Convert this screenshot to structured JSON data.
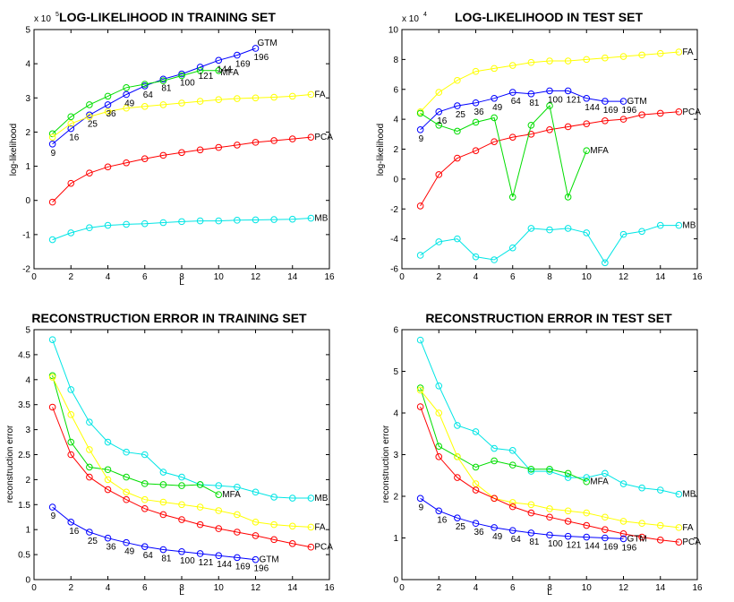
{
  "chart_data": [
    {
      "type": "line",
      "title": "LOG-LIKELIHOOD IN TRAINING SET",
      "xlabel": "L",
      "ylabel": "log-likelihood",
      "exponent_base": "x 10",
      "exponent": "5",
      "xlim": [
        0,
        16
      ],
      "ylim": [
        -2,
        5
      ],
      "xticks": [
        "0",
        "2",
        "4",
        "6",
        "8",
        "10",
        "12",
        "14",
        "16"
      ],
      "yticks": [
        "-2",
        "-1",
        "0",
        "1",
        "2",
        "3",
        "4",
        "5"
      ],
      "series": [
        {
          "name": "GTM",
          "color": "#0000ff",
          "x": [
            1,
            2,
            3,
            4,
            5,
            6,
            7,
            8,
            9,
            10,
            11,
            12
          ],
          "values": [
            1.65,
            2.1,
            2.5,
            2.8,
            3.1,
            3.35,
            3.55,
            3.7,
            3.9,
            4.1,
            4.25,
            4.45
          ]
        },
        {
          "name": "MFA",
          "color": "#00dd00",
          "x": [
            1,
            2,
            3,
            4,
            5,
            6,
            7,
            8,
            9,
            10
          ],
          "values": [
            1.95,
            2.45,
            2.8,
            3.05,
            3.3,
            3.4,
            3.5,
            3.65,
            3.8,
            3.8
          ]
        },
        {
          "name": "FA",
          "color": "#ffff00",
          "x": [
            1,
            2,
            3,
            4,
            5,
            6,
            7,
            8,
            9,
            10,
            11,
            12,
            13,
            14,
            15
          ],
          "values": [
            1.85,
            2.25,
            2.45,
            2.6,
            2.7,
            2.75,
            2.8,
            2.85,
            2.9,
            2.95,
            2.98,
            3.0,
            3.02,
            3.05,
            3.1
          ]
        },
        {
          "name": "PCA",
          "color": "#ff0000",
          "x": [
            1,
            2,
            3,
            4,
            5,
            6,
            7,
            8,
            9,
            10,
            11,
            12,
            13,
            14,
            15
          ],
          "values": [
            -0.05,
            0.5,
            0.8,
            0.98,
            1.1,
            1.22,
            1.32,
            1.4,
            1.48,
            1.55,
            1.62,
            1.7,
            1.75,
            1.8,
            1.85
          ]
        },
        {
          "name": "MB",
          "color": "#00e5e5",
          "x": [
            1,
            2,
            3,
            4,
            5,
            6,
            7,
            8,
            9,
            10,
            11,
            12,
            13,
            14,
            15
          ],
          "values": [
            -1.15,
            -0.95,
            -0.8,
            -0.73,
            -0.7,
            -0.68,
            -0.65,
            -0.62,
            -0.6,
            -0.6,
            -0.58,
            -0.57,
            -0.56,
            -0.55,
            -0.52
          ]
        }
      ],
      "annotations": [
        {
          "text": "9",
          "x": 1,
          "y": 1.65
        },
        {
          "text": "16",
          "x": 2,
          "y": 2.1
        },
        {
          "text": "25",
          "x": 3,
          "y": 2.5
        },
        {
          "text": "36",
          "x": 4,
          "y": 2.8
        },
        {
          "text": "49",
          "x": 5,
          "y": 3.1
        },
        {
          "text": "64",
          "x": 6,
          "y": 3.35
        },
        {
          "text": "81",
          "x": 7,
          "y": 3.55
        },
        {
          "text": "100",
          "x": 8,
          "y": 3.7
        },
        {
          "text": "121",
          "x": 9,
          "y": 3.9
        },
        {
          "text": "144",
          "x": 10,
          "y": 4.1
        },
        {
          "text": "169",
          "x": 11,
          "y": 4.25
        },
        {
          "text": "196",
          "x": 12,
          "y": 4.45
        }
      ]
    },
    {
      "type": "line",
      "title": "LOG-LIKELIHOOD IN TEST SET",
      "xlabel": "",
      "ylabel": "log-likelihood",
      "exponent_base": "x 10",
      "exponent": "4",
      "xlim": [
        0,
        16
      ],
      "ylim": [
        -6,
        10
      ],
      "xticks": [
        "0",
        "2",
        "4",
        "6",
        "8",
        "10",
        "12",
        "14",
        "16"
      ],
      "yticks": [
        "-6",
        "-4",
        "-2",
        "0",
        "2",
        "4",
        "6",
        "8",
        "10"
      ],
      "series": [
        {
          "name": "FA",
          "color": "#ffff00",
          "x": [
            1,
            2,
            3,
            4,
            5,
            6,
            7,
            8,
            9,
            10,
            11,
            12,
            13,
            14,
            15
          ],
          "values": [
            4.5,
            5.8,
            6.6,
            7.2,
            7.4,
            7.6,
            7.8,
            7.9,
            7.9,
            8.0,
            8.1,
            8.2,
            8.3,
            8.4,
            8.5
          ]
        },
        {
          "name": "GTM",
          "color": "#0000ff",
          "x": [
            1,
            2,
            3,
            4,
            5,
            6,
            7,
            8,
            9,
            10,
            11,
            12
          ],
          "values": [
            3.3,
            4.5,
            4.9,
            5.1,
            5.4,
            5.8,
            5.7,
            5.9,
            5.9,
            5.4,
            5.2,
            5.2
          ]
        },
        {
          "name": "PCA",
          "color": "#ff0000",
          "x": [
            1,
            2,
            3,
            4,
            5,
            6,
            7,
            8,
            9,
            10,
            11,
            12,
            13,
            14,
            15
          ],
          "values": [
            -1.8,
            0.3,
            1.4,
            1.9,
            2.5,
            2.8,
            3.0,
            3.3,
            3.5,
            3.7,
            3.9,
            4.0,
            4.3,
            4.4,
            4.5
          ]
        },
        {
          "name": "MFA",
          "color": "#00dd00",
          "x": [
            1,
            2,
            3,
            4,
            5,
            6,
            7,
            8,
            9,
            10
          ],
          "values": [
            4.4,
            3.6,
            3.2,
            3.8,
            4.1,
            -1.2,
            3.6,
            4.9,
            -1.2,
            1.9
          ]
        },
        {
          "name": "MB",
          "color": "#00e5e5",
          "x": [
            1,
            2,
            3,
            4,
            5,
            6,
            7,
            8,
            9,
            10,
            11,
            12,
            13,
            14,
            15
          ],
          "values": [
            -5.1,
            -4.2,
            -4.0,
            -5.2,
            -5.4,
            -4.6,
            -3.3,
            -3.4,
            -3.3,
            -3.6,
            -5.6,
            -3.7,
            -3.5,
            -3.1,
            -3.1
          ]
        }
      ],
      "annotations": [
        {
          "text": "9",
          "x": 1,
          "y": 3.3
        },
        {
          "text": "16",
          "x": 2,
          "y": 4.5
        },
        {
          "text": "25",
          "x": 3,
          "y": 4.9
        },
        {
          "text": "36",
          "x": 4,
          "y": 5.1
        },
        {
          "text": "49",
          "x": 5,
          "y": 5.4
        },
        {
          "text": "64",
          "x": 6,
          "y": 5.8
        },
        {
          "text": "81",
          "x": 7,
          "y": 5.7
        },
        {
          "text": "100",
          "x": 8,
          "y": 5.9
        },
        {
          "text": "121",
          "x": 9,
          "y": 5.9
        },
        {
          "text": "144",
          "x": 10,
          "y": 5.4
        },
        {
          "text": "169",
          "x": 11,
          "y": 5.2
        },
        {
          "text": "196",
          "x": 12,
          "y": 5.2
        }
      ]
    },
    {
      "type": "line",
      "title": "RECONSTRUCTION ERROR IN TRAINING SET",
      "xlabel": "L",
      "ylabel": "reconstruction error",
      "xlim": [
        0,
        16
      ],
      "ylim": [
        0,
        5
      ],
      "xticks": [
        "0",
        "2",
        "4",
        "6",
        "8",
        "10",
        "12",
        "14",
        "16"
      ],
      "yticks": [
        "0",
        "0.5",
        "1",
        "1.5",
        "2",
        "2.5",
        "3",
        "3.5",
        "4",
        "4.5",
        "5"
      ],
      "series": [
        {
          "name": "MB",
          "color": "#00e5e5",
          "x": [
            1,
            2,
            3,
            4,
            5,
            6,
            7,
            8,
            9,
            10,
            11,
            12,
            13,
            14,
            15
          ],
          "values": [
            4.8,
            3.8,
            3.15,
            2.75,
            2.55,
            2.5,
            2.15,
            2.05,
            1.9,
            1.88,
            1.85,
            1.75,
            1.65,
            1.63,
            1.63
          ]
        },
        {
          "name": "MFA",
          "color": "#00dd00",
          "x": [
            1,
            2,
            3,
            4,
            5,
            6,
            7,
            8,
            9,
            10
          ],
          "values": [
            4.08,
            2.75,
            2.25,
            2.2,
            2.05,
            1.92,
            1.9,
            1.88,
            1.9,
            1.7
          ]
        },
        {
          "name": "FA",
          "color": "#ffff00",
          "x": [
            1,
            2,
            3,
            4,
            5,
            6,
            7,
            8,
            9,
            10,
            11,
            12,
            13,
            14,
            15
          ],
          "values": [
            4.05,
            3.3,
            2.6,
            2.0,
            1.75,
            1.6,
            1.55,
            1.5,
            1.45,
            1.38,
            1.3,
            1.15,
            1.1,
            1.07,
            1.05
          ]
        },
        {
          "name": "PCA",
          "color": "#ff0000",
          "x": [
            1,
            2,
            3,
            4,
            5,
            6,
            7,
            8,
            9,
            10,
            11,
            12,
            13,
            14,
            15
          ],
          "values": [
            3.45,
            2.5,
            2.05,
            1.8,
            1.6,
            1.42,
            1.3,
            1.2,
            1.1,
            1.02,
            0.95,
            0.88,
            0.8,
            0.72,
            0.65
          ]
        },
        {
          "name": "GTM",
          "color": "#0000ff",
          "x": [
            1,
            2,
            3,
            4,
            5,
            6,
            7,
            8,
            9,
            10,
            11,
            12
          ],
          "values": [
            1.45,
            1.15,
            0.95,
            0.83,
            0.74,
            0.66,
            0.6,
            0.56,
            0.52,
            0.48,
            0.44,
            0.4
          ]
        }
      ],
      "annotations": [
        {
          "text": "9",
          "x": 1,
          "y": 1.45
        },
        {
          "text": "16",
          "x": 2,
          "y": 1.15
        },
        {
          "text": "25",
          "x": 3,
          "y": 0.95
        },
        {
          "text": "36",
          "x": 4,
          "y": 0.83
        },
        {
          "text": "49",
          "x": 5,
          "y": 0.74
        },
        {
          "text": "64",
          "x": 6,
          "y": 0.66
        },
        {
          "text": "81",
          "x": 7,
          "y": 0.6
        },
        {
          "text": "100",
          "x": 8,
          "y": 0.56
        },
        {
          "text": "121",
          "x": 9,
          "y": 0.52
        },
        {
          "text": "144",
          "x": 10,
          "y": 0.48
        },
        {
          "text": "169",
          "x": 11,
          "y": 0.44
        },
        {
          "text": "196",
          "x": 12,
          "y": 0.4
        }
      ]
    },
    {
      "type": "line",
      "title": "RECONSTRUCTION ERROR IN TEST SET",
      "xlabel": "L",
      "ylabel": "reconstruction error",
      "xlim": [
        0,
        16
      ],
      "ylim": [
        0,
        6
      ],
      "xticks": [
        "0",
        "2",
        "4",
        "6",
        "8",
        "10",
        "12",
        "14",
        "16"
      ],
      "yticks": [
        "0",
        "1",
        "2",
        "3",
        "4",
        "5",
        "6"
      ],
      "series": [
        {
          "name": "MB",
          "color": "#00e5e5",
          "x": [
            1,
            2,
            3,
            4,
            5,
            6,
            7,
            8,
            9,
            10,
            11,
            12,
            13,
            14,
            15
          ],
          "values": [
            5.75,
            4.65,
            3.7,
            3.55,
            3.15,
            3.1,
            2.6,
            2.6,
            2.45,
            2.45,
            2.55,
            2.3,
            2.2,
            2.15,
            2.05
          ]
        },
        {
          "name": "MFA",
          "color": "#00dd00",
          "x": [
            1,
            2,
            3,
            4,
            5,
            6,
            7,
            8,
            9,
            10
          ],
          "values": [
            4.6,
            3.2,
            2.95,
            2.7,
            2.85,
            2.75,
            2.65,
            2.65,
            2.55,
            2.35
          ]
        },
        {
          "name": "FA",
          "color": "#ffff00",
          "x": [
            1,
            2,
            3,
            4,
            5,
            6,
            7,
            8,
            9,
            10,
            11,
            12,
            13,
            14,
            15
          ],
          "values": [
            4.55,
            4.0,
            2.95,
            2.3,
            1.95,
            1.85,
            1.8,
            1.7,
            1.65,
            1.6,
            1.5,
            1.4,
            1.35,
            1.3,
            1.25
          ]
        },
        {
          "name": "PCA",
          "color": "#ff0000",
          "x": [
            1,
            2,
            3,
            4,
            5,
            6,
            7,
            8,
            9,
            10,
            11,
            12,
            13,
            14,
            15
          ],
          "values": [
            4.15,
            2.95,
            2.45,
            2.15,
            1.95,
            1.75,
            1.6,
            1.5,
            1.4,
            1.3,
            1.2,
            1.1,
            1.02,
            0.95,
            0.9
          ]
        },
        {
          "name": "GTM",
          "color": "#0000ff",
          "x": [
            1,
            2,
            3,
            4,
            5,
            6,
            7,
            8,
            9,
            10,
            11,
            12
          ],
          "values": [
            1.95,
            1.65,
            1.48,
            1.35,
            1.25,
            1.18,
            1.12,
            1.07,
            1.04,
            1.02,
            1.0,
            0.98
          ]
        }
      ],
      "annotations": [
        {
          "text": "9",
          "x": 1,
          "y": 1.95
        },
        {
          "text": "16",
          "x": 2,
          "y": 1.65
        },
        {
          "text": "25",
          "x": 3,
          "y": 1.48
        },
        {
          "text": "36",
          "x": 4,
          "y": 1.35
        },
        {
          "text": "49",
          "x": 5,
          "y": 1.25
        },
        {
          "text": "64",
          "x": 6,
          "y": 1.18
        },
        {
          "text": "81",
          "x": 7,
          "y": 1.12
        },
        {
          "text": "100",
          "x": 8,
          "y": 1.07
        },
        {
          "text": "121",
          "x": 9,
          "y": 1.04
        },
        {
          "text": "144",
          "x": 10,
          "y": 1.02
        },
        {
          "text": "169",
          "x": 11,
          "y": 1.0
        },
        {
          "text": "196",
          "x": 12,
          "y": 0.98
        }
      ]
    }
  ]
}
